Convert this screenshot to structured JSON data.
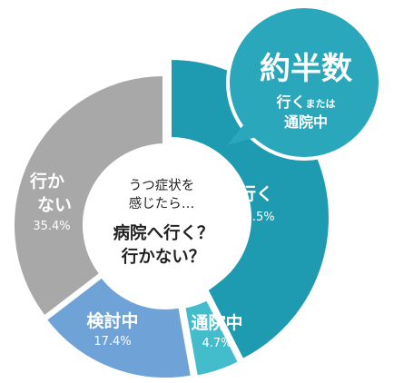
{
  "chart_data": {
    "type": "pie",
    "title": "",
    "center_question": {
      "line1": "うつ症状を",
      "line2": "感じたら…",
      "line3": "病院へ行く？",
      "line4": "行かない？"
    },
    "slices": [
      {
        "name": "行く",
        "value": 42.5,
        "value_label": "42.5%",
        "color": "#1e9bb0"
      },
      {
        "name": "通院中",
        "value": 4.7,
        "value_label": "4.7%",
        "color": "#43bdcc"
      },
      {
        "name": "検討中",
        "value": 17.4,
        "value_label": "17.4%",
        "color": "#6fa3d8"
      },
      {
        "name": "行かない",
        "name_line1": "行か",
        "name_line2": "ない",
        "value": 35.4,
        "value_label": "35.4%",
        "color": "#a8a8a8"
      }
    ],
    "callout": {
      "headline": "約半数",
      "sub_part1": "行く",
      "sub_part2": "または",
      "sub_line2": "通院中",
      "color": "#2aa7ba"
    }
  }
}
